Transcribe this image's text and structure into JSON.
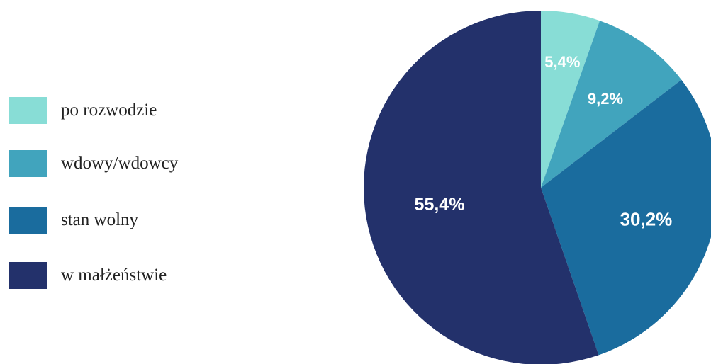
{
  "chart_data": {
    "type": "pie",
    "categories": [
      "po rozwodzie",
      "wdowy/wdowcy",
      "stan wolny",
      "w małżeństwie"
    ],
    "values": [
      5.4,
      9.2,
      30.2,
      55.4
    ],
    "value_labels": [
      "5,4%",
      "9,2%",
      "30,2%",
      "55,4%"
    ],
    "colors": [
      "#88ddd6",
      "#41a4bd",
      "#1a6c9e",
      "#23316b"
    ],
    "start_angle": "12 o'clock",
    "direction": "clockwise",
    "legend_position": "left"
  }
}
